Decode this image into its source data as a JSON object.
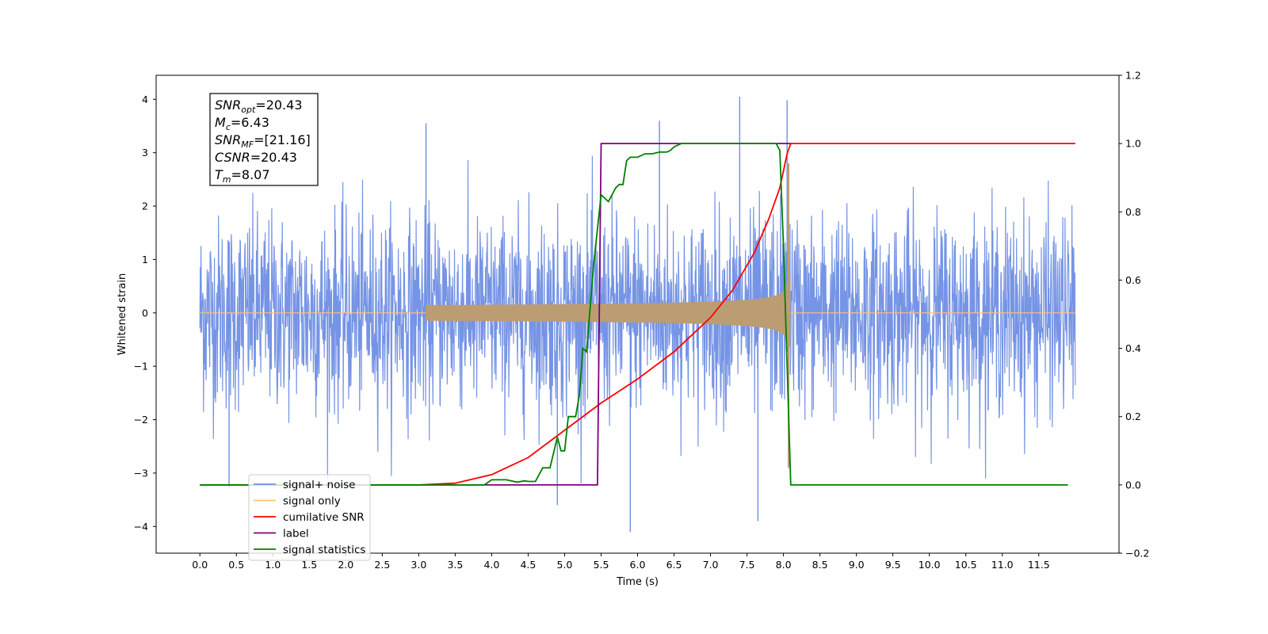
{
  "chart_data": {
    "type": "line",
    "xlabel": "Time (s)",
    "ylabel": "Whitened strain",
    "xlim": [
      -0.6,
      12.6
    ],
    "ylim": [
      -4.5,
      4.45
    ],
    "y2lim": [
      -0.2,
      1.2
    ],
    "x_ticks": [
      "0.0",
      "0.5",
      "1.0",
      "1.5",
      "2.0",
      "2.5",
      "3.0",
      "3.5",
      "4.0",
      "4.5",
      "5.0",
      "5.5",
      "6.0",
      "6.5",
      "7.0",
      "7.5",
      "8.0",
      "8.5",
      "9.0",
      "9.5",
      "10.0",
      "10.5",
      "11.0",
      "11.5"
    ],
    "y_ticks": [
      "4",
      "3",
      "2",
      "1",
      "0",
      "−1",
      "−2",
      "−3",
      "−4"
    ],
    "y2_ticks": [
      "1.2",
      "1.0",
      "0.8",
      "0.6",
      "0.4",
      "0.2",
      "0.0",
      "−0.2"
    ],
    "annotation": [
      {
        "base": "SNR",
        "sub": "opt",
        "value": "=20.43"
      },
      {
        "base": "M",
        "sub": "c",
        "value": "=6.43"
      },
      {
        "base": "SNR",
        "sub": "MF",
        "value": "=[21.16]"
      },
      {
        "base": "CSNR",
        "sub": "",
        "value": "=20.43"
      },
      {
        "base": "T",
        "sub": "m",
        "value": "=8.07"
      }
    ],
    "legend": {
      "placement": "lower-left",
      "entries": [
        {
          "label": "signal+ noise",
          "color": "#6f8ee4"
        },
        {
          "label": "signal only",
          "color": "#ffc46b"
        },
        {
          "label": "cumilative SNR",
          "color": "#ff0000"
        },
        {
          "label": "label",
          "color": "#800080"
        },
        {
          "label": "signal statistics",
          "color": "#008000"
        }
      ]
    },
    "series": [
      {
        "name": "signal+ noise",
        "axis": "left",
        "kind": "noise",
        "x_range": [
          0.0,
          12.0
        ],
        "std": 0.9,
        "peaks": [
          [
            4.9,
            -3.6
          ],
          [
            5.9,
            -4.1
          ],
          [
            7.4,
            4.05
          ],
          [
            8.05,
            3.98
          ],
          [
            7.65,
            -3.9
          ],
          [
            3.1,
            3.55
          ],
          [
            6.3,
            3.6
          ],
          [
            0.4,
            -3.25
          ]
        ]
      },
      {
        "name": "signal only",
        "axis": "left",
        "kind": "chirp",
        "t_merger": 8.07,
        "t_start": 3.5,
        "amp_peak": 3.15
      },
      {
        "name": "cumilative SNR",
        "axis": "right",
        "x": [
          0.0,
          3.0,
          3.5,
          4.0,
          4.5,
          5.0,
          5.5,
          6.0,
          6.5,
          7.0,
          7.3,
          7.6,
          7.8,
          7.95,
          8.05,
          8.1,
          11.0,
          12.0
        ],
        "y": [
          0.0,
          0.0,
          0.005,
          0.03,
          0.08,
          0.16,
          0.24,
          0.31,
          0.39,
          0.49,
          0.57,
          0.68,
          0.78,
          0.87,
          0.97,
          1.0,
          1.0,
          1.0
        ]
      },
      {
        "name": "label",
        "axis": "right",
        "x": [
          0.0,
          5.45,
          5.5,
          8.05,
          8.1
        ],
        "y": [
          0.0,
          0.0,
          1.0,
          1.0,
          1.0
        ]
      },
      {
        "name": "signal statistics",
        "axis": "right",
        "x": [
          0.0,
          3.9,
          4.0,
          4.2,
          4.35,
          4.45,
          4.5,
          4.6,
          4.7,
          4.8,
          4.9,
          4.95,
          5.0,
          5.05,
          5.1,
          5.15,
          5.2,
          5.25,
          5.3,
          5.35,
          5.4,
          5.45,
          5.5,
          5.6,
          5.7,
          5.75,
          5.8,
          5.85,
          5.9,
          6.0,
          6.1,
          6.2,
          6.3,
          6.4,
          6.45,
          6.5,
          6.6,
          7.0,
          7.5,
          7.9,
          7.95,
          8.0,
          8.1,
          11.9
        ],
        "y": [
          0.0,
          0.0,
          0.015,
          0.015,
          0.008,
          0.012,
          0.01,
          0.01,
          0.05,
          0.05,
          0.14,
          0.1,
          0.1,
          0.2,
          0.2,
          0.2,
          0.26,
          0.4,
          0.39,
          0.52,
          0.65,
          0.75,
          0.85,
          0.83,
          0.87,
          0.88,
          0.88,
          0.95,
          0.96,
          0.96,
          0.97,
          0.97,
          0.975,
          0.975,
          0.98,
          0.99,
          1.0,
          1.0,
          1.0,
          1.0,
          0.98,
          0.7,
          0.0,
          0.0
        ]
      }
    ]
  }
}
